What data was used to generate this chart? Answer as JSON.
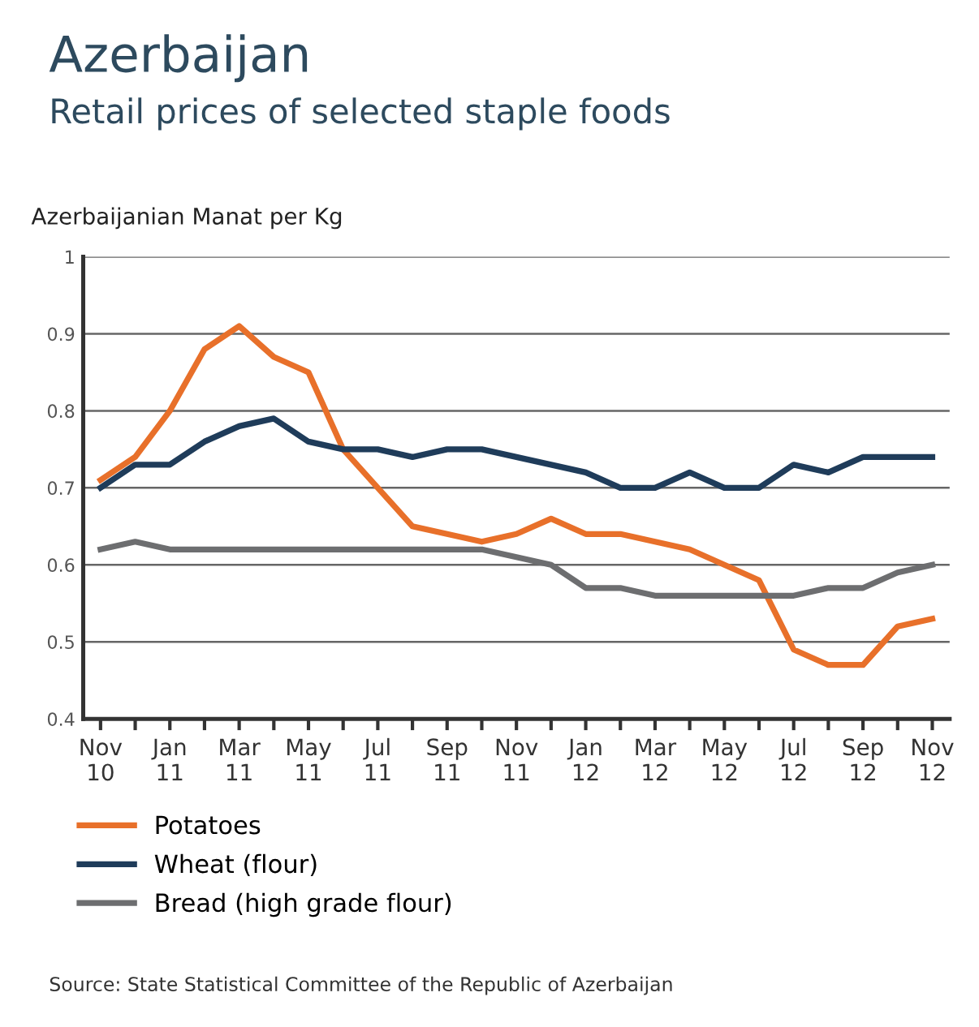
{
  "chart_data": {
    "type": "line",
    "title": "Azerbaijan",
    "subtitle": "Retail prices of selected staple foods",
    "ylabel": "Azerbaijanian Manat per Kg",
    "categories": [
      "Nov\n10",
      null,
      "Jan\n11",
      null,
      "Mar\n11",
      null,
      "May\n11",
      null,
      "Jul\n11",
      null,
      "Sep\n11",
      null,
      "Nov\n11",
      null,
      "Jan\n12",
      null,
      "Mar\n12",
      null,
      "May\n12",
      null,
      "Jul\n12",
      null,
      "Sep\n12",
      null,
      "Nov\n12"
    ],
    "series": [
      {
        "name": "Potatoes",
        "color": "#e8702a",
        "values": [
          0.71,
          0.74,
          0.8,
          0.88,
          0.91,
          0.87,
          0.85,
          0.75,
          0.7,
          0.65,
          0.64,
          0.63,
          0.64,
          0.66,
          0.64,
          0.64,
          0.63,
          0.62,
          0.6,
          0.58,
          0.49,
          0.47,
          0.47,
          0.52,
          0.53
        ]
      },
      {
        "name": "Wheat (flour)",
        "color": "#1f3c5a",
        "values": [
          0.7,
          0.73,
          0.73,
          0.76,
          0.78,
          0.79,
          0.76,
          0.75,
          0.75,
          0.74,
          0.75,
          0.75,
          0.74,
          0.73,
          0.72,
          0.7,
          0.7,
          0.72,
          0.7,
          0.7,
          0.73,
          0.72,
          0.74,
          0.74,
          0.74
        ]
      },
      {
        "name": "Bread (high grade flour)",
        "color": "#6d6e70",
        "values": [
          0.62,
          0.63,
          0.62,
          0.62,
          0.62,
          0.62,
          0.62,
          0.62,
          0.62,
          0.62,
          0.62,
          0.62,
          0.61,
          0.6,
          0.57,
          0.57,
          0.56,
          0.56,
          0.56,
          0.56,
          0.56,
          0.57,
          0.57,
          0.59,
          0.6
        ]
      }
    ],
    "ylim": [
      0.4,
      1
    ],
    "yticks": [
      0.4,
      0.5,
      0.6,
      0.7,
      0.8,
      0.9,
      1
    ],
    "grid": "y",
    "legend": "bottom left",
    "marker": "none",
    "line_style": "solid",
    "annotations": [
      "Source: State Statistical Committee of the Republic of Azerbaijan"
    ]
  }
}
